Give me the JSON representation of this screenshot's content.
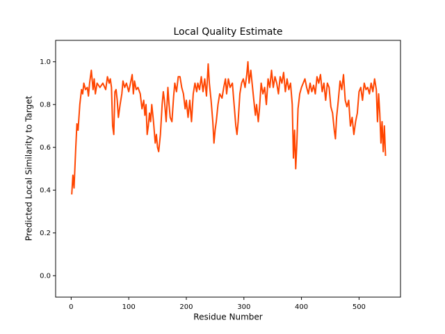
{
  "chart_data": {
    "type": "line",
    "title": "Local Quality Estimate",
    "x_label": "Residue Number",
    "y_label": "Predicted Local Similarity to Target",
    "xlim": [
      -27,
      572
    ],
    "xticks": [
      0,
      100,
      200,
      300,
      400,
      500
    ],
    "ylim": [
      -0.1,
      1.1
    ],
    "yticks": [
      {
        "value": 0,
        "label": "0.0"
      },
      0.2,
      0.4,
      0.6,
      0.8,
      {
        "value": 1,
        "label": "1.0"
      }
    ],
    "grid": false,
    "series": [
      {
        "color": "#ff4500",
        "x": [
          1,
          3,
          5,
          8,
          10,
          12,
          15,
          18,
          20,
          22,
          25,
          28,
          30,
          32,
          35,
          38,
          40,
          42,
          45,
          50,
          55,
          60,
          63,
          66,
          68,
          70,
          72,
          74,
          76,
          78,
          80,
          82,
          85,
          88,
          90,
          93,
          96,
          100,
          103,
          106,
          108,
          110,
          113,
          116,
          120,
          123,
          126,
          128,
          130,
          132,
          134,
          136,
          138,
          140,
          143,
          146,
          148,
          150,
          152,
          155,
          158,
          160,
          162,
          165,
          168,
          170,
          172,
          175,
          178,
          180,
          183,
          186,
          189,
          192,
          195,
          198,
          200,
          203,
          206,
          209,
          212,
          215,
          218,
          220,
          223,
          226,
          229,
          232,
          235,
          238,
          240,
          243,
          246,
          248,
          250,
          252,
          255,
          258,
          262,
          265,
          268,
          270,
          273,
          276,
          280,
          283,
          286,
          288,
          290,
          293,
          296,
          299,
          302,
          305,
          307,
          309,
          312,
          315,
          318,
          320,
          322,
          325,
          327,
          330,
          333,
          336,
          339,
          342,
          345,
          348,
          351,
          354,
          357,
          360,
          363,
          366,
          369,
          372,
          375,
          378,
          381,
          384,
          386,
          388,
          390,
          392,
          394,
          397,
          400,
          403,
          406,
          409,
          412,
          415,
          418,
          421,
          424,
          427,
          430,
          433,
          436,
          439,
          442,
          445,
          448,
          451,
          454,
          457,
          459,
          461,
          464,
          467,
          470,
          473,
          476,
          479,
          482,
          485,
          488,
          491,
          494,
          497,
          500,
          503,
          506,
          509,
          512,
          515,
          518,
          521,
          524,
          527,
          530,
          532,
          534,
          536,
          538,
          540,
          542,
          544,
          546
        ],
        "values": [
          0.38,
          0.47,
          0.41,
          0.6,
          0.71,
          0.68,
          0.8,
          0.87,
          0.85,
          0.9,
          0.87,
          0.88,
          0.84,
          0.9,
          0.96,
          0.87,
          0.92,
          0.85,
          0.9,
          0.88,
          0.9,
          0.87,
          0.93,
          0.9,
          0.92,
          0.88,
          0.7,
          0.66,
          0.86,
          0.87,
          0.82,
          0.74,
          0.8,
          0.85,
          0.91,
          0.88,
          0.9,
          0.86,
          0.9,
          0.94,
          0.85,
          0.91,
          0.87,
          0.88,
          0.85,
          0.78,
          0.82,
          0.75,
          0.8,
          0.66,
          0.7,
          0.76,
          0.72,
          0.8,
          0.72,
          0.62,
          0.66,
          0.6,
          0.58,
          0.66,
          0.8,
          0.86,
          0.82,
          0.72,
          0.88,
          0.8,
          0.74,
          0.72,
          0.84,
          0.9,
          0.86,
          0.93,
          0.93,
          0.88,
          0.85,
          0.78,
          0.82,
          0.74,
          0.82,
          0.72,
          0.85,
          0.9,
          0.86,
          0.9,
          0.87,
          0.93,
          0.86,
          0.92,
          0.84,
          0.99,
          0.9,
          0.82,
          0.72,
          0.62,
          0.68,
          0.72,
          0.8,
          0.85,
          0.83,
          0.88,
          0.92,
          0.85,
          0.92,
          0.88,
          0.9,
          0.8,
          0.7,
          0.66,
          0.72,
          0.85,
          0.9,
          0.92,
          0.88,
          0.94,
          1.0,
          0.9,
          0.96,
          0.88,
          0.8,
          0.75,
          0.8,
          0.72,
          0.78,
          0.9,
          0.85,
          0.88,
          0.8,
          0.92,
          0.88,
          0.96,
          0.88,
          0.93,
          0.9,
          0.85,
          0.93,
          0.9,
          0.95,
          0.86,
          0.92,
          0.87,
          0.9,
          0.8,
          0.55,
          0.68,
          0.5,
          0.62,
          0.78,
          0.85,
          0.88,
          0.9,
          0.92,
          0.88,
          0.85,
          0.9,
          0.86,
          0.89,
          0.85,
          0.93,
          0.9,
          0.94,
          0.86,
          0.9,
          0.82,
          0.9,
          0.88,
          0.79,
          0.76,
          0.68,
          0.64,
          0.74,
          0.82,
          0.91,
          0.87,
          0.94,
          0.82,
          0.79,
          0.82,
          0.7,
          0.74,
          0.66,
          0.72,
          0.76,
          0.86,
          0.88,
          0.82,
          0.9,
          0.87,
          0.88,
          0.85,
          0.9,
          0.86,
          0.92,
          0.87,
          0.72,
          0.85,
          0.76,
          0.62,
          0.72,
          0.58,
          0.7,
          0.56
        ]
      }
    ]
  }
}
